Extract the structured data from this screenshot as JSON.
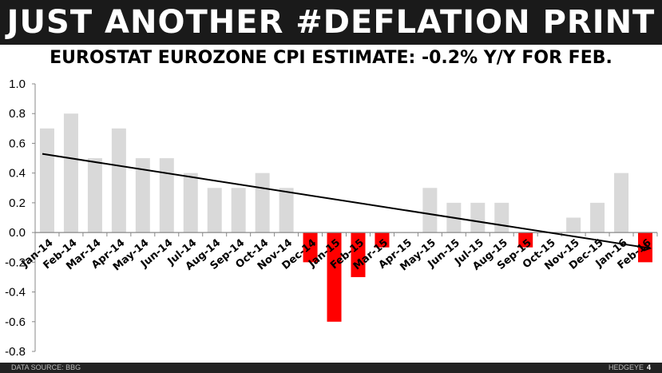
{
  "header": {
    "title": "JUST ANOTHER #DEFLATION PRINT"
  },
  "footer": {
    "source": "DATA SOURCE: BBG",
    "brand": "HEDGEYE",
    "page": "4"
  },
  "chart_data": {
    "type": "bar",
    "title": "EUROSTAT EUROZONE CPI ESTIMATE: -0.2% Y/Y FOR FEB.",
    "xlabel": "",
    "ylabel": "",
    "ylim": [
      -0.8,
      1.0
    ],
    "yticks": [
      "1.0",
      "0.8",
      "0.6",
      "0.4",
      "0.2",
      "0.0",
      "-0.2",
      "-0.4",
      "-0.6",
      "-0.8"
    ],
    "grid": false,
    "categories": [
      "Jan-14",
      "Feb-14",
      "Mar-14",
      "Apr-14",
      "May-14",
      "Jun-14",
      "Jul-14",
      "Aug-14",
      "Sep-14",
      "Oct-14",
      "Nov-14",
      "Dec-14",
      "Jan-15",
      "Feb-15",
      "Mar-15",
      "Apr-15",
      "May-15",
      "Jun-15",
      "Jul-15",
      "Aug-15",
      "Sep-15",
      "Oct-15",
      "Nov-15",
      "Dec-15",
      "Jan-16",
      "Feb-16"
    ],
    "values": [
      0.7,
      0.8,
      0.5,
      0.7,
      0.5,
      0.5,
      0.4,
      0.3,
      0.3,
      0.4,
      0.3,
      -0.2,
      -0.6,
      -0.3,
      -0.1,
      0.0,
      0.3,
      0.2,
      0.2,
      0.2,
      -0.1,
      0.0,
      0.1,
      0.2,
      0.4,
      -0.2
    ],
    "colors": {
      "positive": "#d9d9d9",
      "negative": "#ff0000",
      "trendline": "#000000"
    },
    "trendline": "linear"
  }
}
